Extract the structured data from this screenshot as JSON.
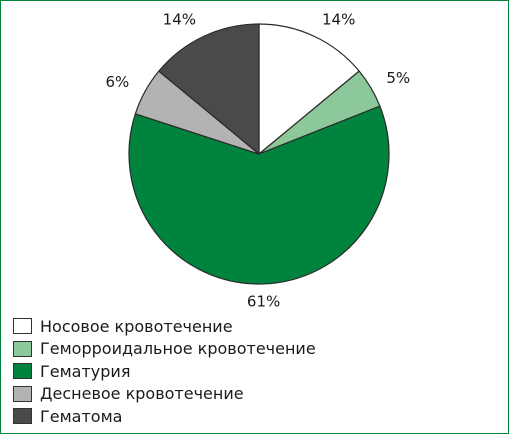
{
  "chart_data": {
    "type": "pie",
    "title": "",
    "slices": [
      {
        "label": "Носовое кровотечение",
        "value": 14,
        "value_label": "14%",
        "color": "#ffffff"
      },
      {
        "label": "Геморроидальное кровотечение",
        "value": 5,
        "value_label": "5%",
        "color": "#8cc89a"
      },
      {
        "label": "Гематурия",
        "value": 61,
        "value_label": "61%",
        "color": "#00843d"
      },
      {
        "label": "Десневое кровотечение",
        "value": 6,
        "value_label": "6%",
        "color": "#b3b3b3"
      },
      {
        "label": "Гематома",
        "value": 14,
        "value_label": "14%",
        "color": "#4a4a4a"
      }
    ],
    "start_angle": "12 o'clock",
    "direction": "clockwise",
    "legend_position": "bottom-left",
    "border_color": "#00843d"
  }
}
